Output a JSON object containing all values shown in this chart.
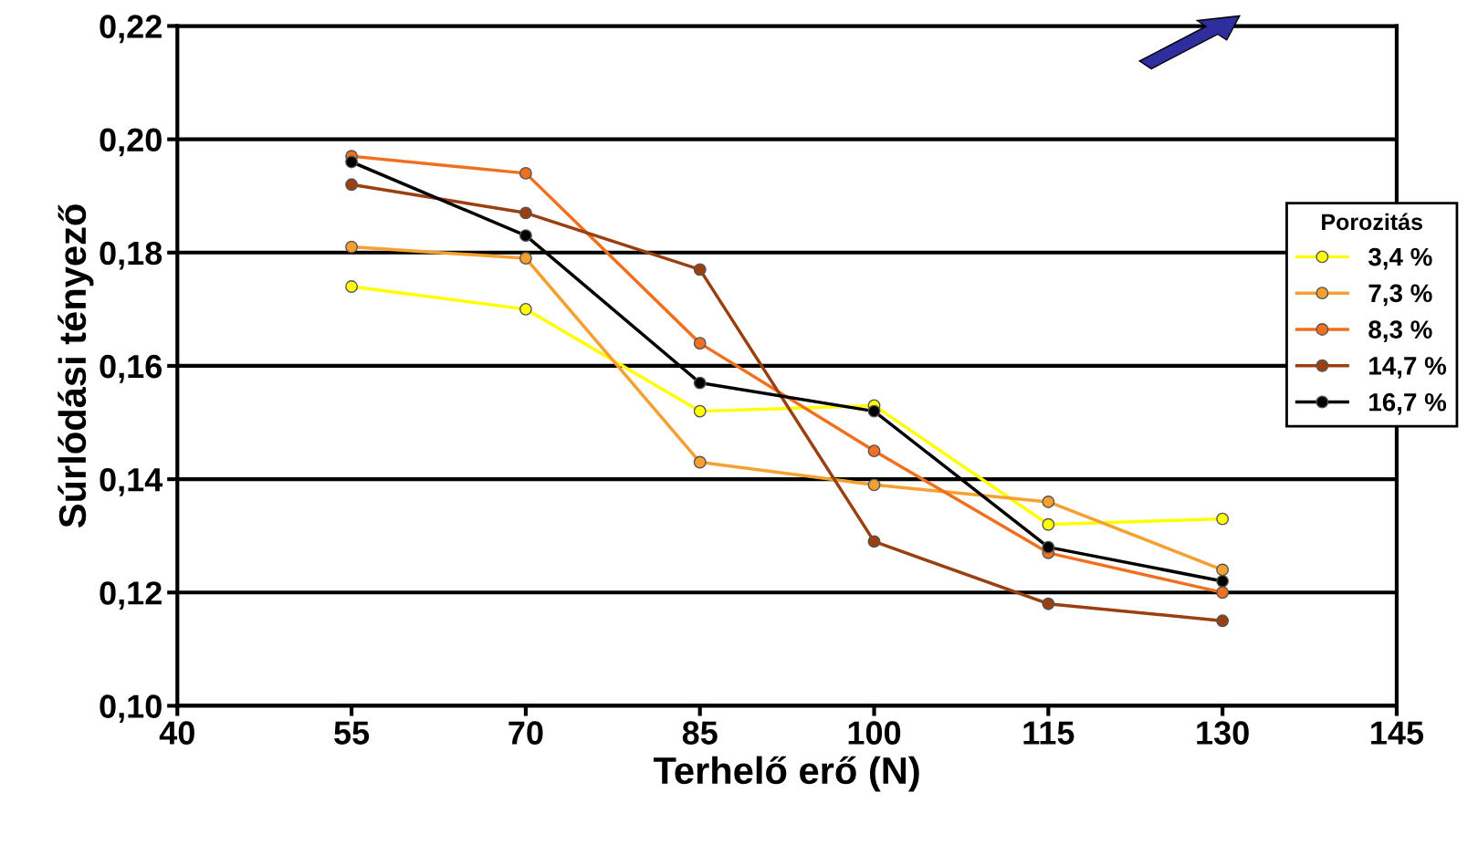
{
  "chart_data": {
    "type": "line",
    "xlabel": "Terhelő erő (N)",
    "ylabel": "Súrlódási tényező",
    "legend_title": "Porozitás",
    "x": [
      55,
      70,
      85,
      100,
      115,
      130
    ],
    "series": [
      {
        "name": "3,4 %",
        "color": "#ffff00",
        "values": [
          0.174,
          0.17,
          0.152,
          0.153,
          0.132,
          0.133
        ]
      },
      {
        "name": "7,3 %",
        "color": "#f5a030",
        "values": [
          0.181,
          0.179,
          0.143,
          0.139,
          0.136,
          0.124
        ]
      },
      {
        "name": "8,3 %",
        "color": "#f07020",
        "values": [
          0.197,
          0.194,
          0.164,
          0.145,
          0.127,
          0.12
        ]
      },
      {
        "name": "14,7 %",
        "color": "#9a4010",
        "values": [
          0.192,
          0.187,
          0.177,
          0.129,
          0.118,
          0.115
        ]
      },
      {
        "name": "16,7 %",
        "color": "#000000",
        "values": [
          0.196,
          0.183,
          0.157,
          0.152,
          0.128,
          0.122
        ]
      }
    ],
    "xlim": [
      40,
      145
    ],
    "xticks": [
      40,
      55,
      70,
      85,
      100,
      115,
      130,
      145
    ],
    "ylim": [
      0.1,
      0.22
    ],
    "yticks": [
      {
        "value": 0.1,
        "label": "0,10"
      },
      {
        "value": 0.12,
        "label": "0,12"
      },
      {
        "value": 0.14,
        "label": "0,14"
      },
      {
        "value": 0.16,
        "label": "0,16"
      },
      {
        "value": 0.18,
        "label": "0,18"
      },
      {
        "value": 0.2,
        "label": "0,20"
      },
      {
        "value": 0.22,
        "label": "0,22"
      }
    ],
    "grid": "y",
    "legend": "right",
    "marker": "circle",
    "line_style": "solid"
  }
}
